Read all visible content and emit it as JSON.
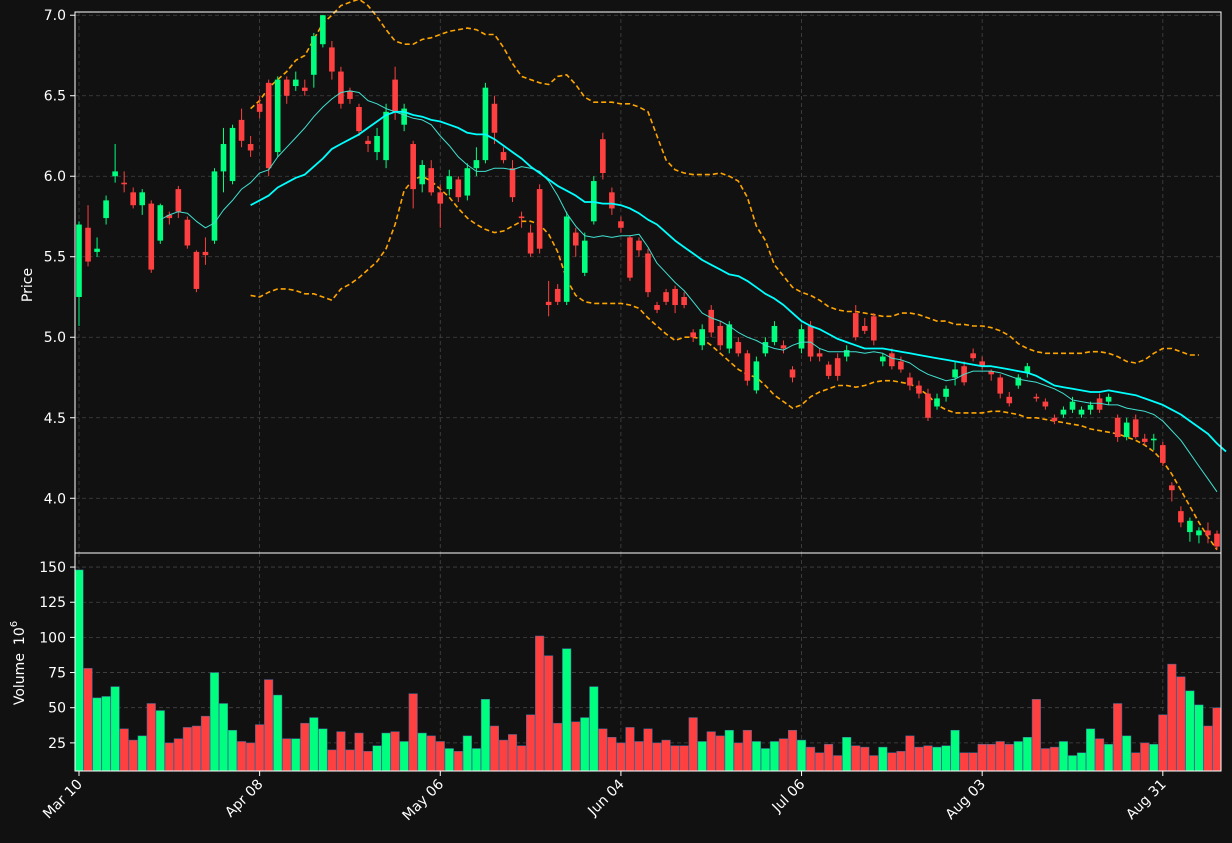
{
  "chart_data": {
    "type": "candlestick",
    "colors": {
      "background": "#111111",
      "up": "#00ff7f",
      "down": "#ff4040",
      "ma_fast": "#40e0d0",
      "ma_slow": "#00ffff",
      "band": "#ffa500",
      "grid": "#444444",
      "axes": "#ffffff"
    },
    "price_axis": {
      "label": "Price",
      "ylim": [
        3.66,
        7.02
      ],
      "ticks": [
        "4.0",
        "4.5",
        "5.0",
        "5.5",
        "6.0",
        "6.5",
        "7.0"
      ]
    },
    "volume_axis": {
      "label": "Volume",
      "unit": "10",
      "unit_exp": "6",
      "ylim": [
        5,
        160
      ],
      "ticks": [
        "25",
        "50",
        "75",
        "100",
        "125",
        "150"
      ]
    },
    "x_axis": {
      "ticks": [
        {
          "index": 0,
          "label": "Mar 10"
        },
        {
          "index": 20,
          "label": "Apr 08"
        },
        {
          "index": 40,
          "label": "May 06"
        },
        {
          "index": 60,
          "label": "Jun 04"
        },
        {
          "index": 80,
          "label": "Jul 06"
        },
        {
          "index": 100,
          "label": "Aug 03"
        },
        {
          "index": 120,
          "label": "Aug 31"
        }
      ]
    },
    "candles": [
      [
        5.25,
        5.7,
        5.72,
        5.07
      ],
      [
        5.68,
        5.47,
        5.82,
        5.44
      ],
      [
        5.53,
        5.55,
        5.62,
        5.5
      ],
      [
        5.74,
        5.85,
        5.88,
        5.7
      ],
      [
        6.0,
        6.03,
        6.2,
        5.96
      ],
      [
        5.96,
        5.95,
        6.03,
        5.9
      ],
      [
        5.9,
        5.82,
        5.93,
        5.8
      ],
      [
        5.82,
        5.9,
        5.92,
        5.76
      ],
      [
        5.83,
        5.42,
        5.85,
        5.4
      ],
      [
        5.6,
        5.82,
        5.83,
        5.58
      ],
      [
        5.76,
        5.74,
        5.78,
        5.7
      ],
      [
        5.92,
        5.78,
        5.94,
        5.74
      ],
      [
        5.73,
        5.57,
        5.75,
        5.55
      ],
      [
        5.53,
        5.3,
        5.54,
        5.28
      ],
      [
        5.53,
        5.51,
        5.62,
        5.45
      ],
      [
        5.6,
        6.03,
        6.05,
        5.58
      ],
      [
        6.03,
        6.2,
        6.3,
        5.9
      ],
      [
        5.97,
        6.3,
        6.32,
        5.95
      ],
      [
        6.35,
        6.22,
        6.42,
        6.18
      ],
      [
        6.2,
        6.16,
        6.25,
        6.12
      ],
      [
        6.45,
        6.4,
        6.5,
        6.36
      ],
      [
        6.58,
        6.05,
        6.6,
        6.0
      ],
      [
        6.15,
        6.6,
        6.62,
        6.12
      ],
      [
        6.6,
        6.5,
        6.62,
        6.45
      ],
      [
        6.56,
        6.6,
        6.65,
        6.53
      ],
      [
        6.55,
        6.53,
        6.6,
        6.5
      ],
      [
        6.63,
        6.87,
        6.89,
        6.55
      ],
      [
        6.82,
        7.0,
        7.0,
        6.8
      ],
      [
        6.8,
        6.65,
        6.84,
        6.6
      ],
      [
        6.65,
        6.45,
        6.68,
        6.42
      ],
      [
        6.53,
        6.48,
        6.55,
        6.45
      ],
      [
        6.43,
        6.28,
        6.45,
        6.25
      ],
      [
        6.22,
        6.2,
        6.25,
        6.15
      ],
      [
        6.15,
        6.25,
        6.3,
        6.1
      ],
      [
        6.1,
        6.4,
        6.45,
        6.05
      ],
      [
        6.6,
        6.4,
        6.68,
        6.35
      ],
      [
        6.32,
        6.42,
        6.45,
        6.28
      ],
      [
        6.2,
        5.92,
        6.22,
        5.8
      ],
      [
        5.95,
        6.07,
        6.1,
        5.9
      ],
      [
        6.05,
        5.9,
        6.1,
        5.88
      ],
      [
        5.9,
        5.83,
        5.95,
        5.68
      ],
      [
        5.92,
        6.0,
        6.04,
        5.88
      ],
      [
        5.98,
        5.87,
        6.0,
        5.84
      ],
      [
        5.88,
        6.05,
        6.08,
        5.85
      ],
      [
        6.05,
        6.1,
        6.18,
        6.0
      ],
      [
        6.1,
        6.55,
        6.58,
        6.08
      ],
      [
        6.45,
        6.27,
        6.5,
        6.2
      ],
      [
        6.15,
        6.1,
        6.18,
        6.08
      ],
      [
        6.05,
        5.87,
        6.1,
        5.84
      ],
      [
        5.75,
        5.74,
        5.78,
        5.68
      ],
      [
        5.65,
        5.52,
        5.7,
        5.5
      ],
      [
        5.92,
        5.55,
        5.95,
        5.52
      ],
      [
        5.22,
        5.2,
        5.35,
        5.13
      ],
      [
        5.3,
        5.22,
        5.33,
        5.2
      ],
      [
        5.22,
        5.75,
        5.78,
        5.2
      ],
      [
        5.65,
        5.57,
        5.68,
        5.5
      ],
      [
        5.4,
        5.6,
        5.65,
        5.38
      ],
      [
        5.72,
        5.97,
        6.0,
        5.7
      ],
      [
        6.23,
        6.02,
        6.27,
        5.98
      ],
      [
        5.9,
        5.8,
        5.93,
        5.76
      ],
      [
        5.72,
        5.68,
        5.75,
        5.65
      ],
      [
        5.62,
        5.37,
        5.63,
        5.35
      ],
      [
        5.6,
        5.54,
        5.62,
        5.5
      ],
      [
        5.52,
        5.28,
        5.55,
        5.25
      ],
      [
        5.2,
        5.17,
        5.22,
        5.15
      ],
      [
        5.28,
        5.22,
        5.3,
        5.2
      ],
      [
        5.3,
        5.2,
        5.32,
        5.15
      ],
      [
        5.25,
        5.2,
        5.28,
        5.18
      ],
      [
        5.03,
        5.0,
        5.05,
        4.97
      ],
      [
        4.95,
        5.05,
        5.08,
        4.92
      ],
      [
        5.17,
        5.03,
        5.2,
        5.0
      ],
      [
        5.07,
        4.95,
        5.1,
        4.92
      ],
      [
        4.93,
        5.08,
        5.1,
        4.9
      ],
      [
        4.97,
        4.9,
        5.0,
        4.88
      ],
      [
        4.9,
        4.73,
        4.92,
        4.7
      ],
      [
        4.67,
        4.85,
        4.88,
        4.65
      ],
      [
        4.9,
        4.97,
        5.0,
        4.88
      ],
      [
        4.97,
        5.07,
        5.1,
        4.95
      ],
      [
        4.95,
        4.93,
        4.98,
        4.9
      ],
      [
        4.8,
        4.75,
        4.82,
        4.72
      ],
      [
        4.93,
        5.05,
        5.08,
        4.9
      ],
      [
        5.07,
        4.88,
        5.1,
        4.85
      ],
      [
        4.9,
        4.88,
        4.93,
        4.85
      ],
      [
        4.83,
        4.76,
        4.85,
        4.74
      ],
      [
        4.87,
        4.76,
        4.9,
        4.73
      ],
      [
        4.88,
        4.92,
        4.95,
        4.85
      ],
      [
        5.15,
        5.0,
        5.2,
        4.98
      ],
      [
        5.07,
        5.04,
        5.12,
        5.02
      ],
      [
        5.13,
        4.98,
        5.15,
        4.95
      ],
      [
        4.85,
        4.88,
        4.9,
        4.82
      ],
      [
        4.9,
        4.82,
        4.93,
        4.8
      ],
      [
        4.85,
        4.8,
        4.88,
        4.78
      ],
      [
        4.75,
        4.7,
        4.78,
        4.67
      ],
      [
        4.7,
        4.65,
        4.73,
        4.62
      ],
      [
        4.65,
        4.5,
        4.68,
        4.48
      ],
      [
        4.57,
        4.62,
        4.65,
        4.55
      ],
      [
        4.63,
        4.68,
        4.7,
        4.6
      ],
      [
        4.75,
        4.8,
        4.85,
        4.7
      ],
      [
        4.82,
        4.72,
        4.85,
        4.7
      ],
      [
        4.9,
        4.87,
        4.93,
        4.85
      ],
      [
        4.85,
        4.82,
        4.88,
        4.8
      ],
      [
        4.79,
        4.77,
        4.8,
        4.73
      ],
      [
        4.75,
        4.65,
        4.77,
        4.62
      ],
      [
        4.63,
        4.59,
        4.66,
        4.57
      ],
      [
        4.7,
        4.75,
        4.77,
        4.68
      ],
      [
        4.78,
        4.82,
        4.84,
        4.75
      ],
      [
        4.63,
        4.62,
        4.65,
        4.6
      ],
      [
        4.6,
        4.57,
        4.62,
        4.55
      ],
      [
        4.5,
        4.48,
        4.52,
        4.46
      ],
      [
        4.52,
        4.55,
        4.57,
        4.5
      ],
      [
        4.55,
        4.6,
        4.63,
        4.53
      ],
      [
        4.52,
        4.55,
        4.57,
        4.5
      ],
      [
        4.55,
        4.58,
        4.6,
        4.52
      ],
      [
        4.62,
        4.55,
        4.65,
        4.53
      ],
      [
        4.6,
        4.63,
        4.65,
        4.58
      ],
      [
        4.5,
        4.38,
        4.52,
        4.35
      ],
      [
        4.38,
        4.47,
        4.5,
        4.36
      ],
      [
        4.49,
        4.38,
        4.52,
        4.37
      ],
      [
        4.37,
        4.35,
        4.4,
        4.33
      ],
      [
        4.36,
        4.37,
        4.4,
        4.3
      ],
      [
        4.33,
        4.22,
        4.35,
        4.2
      ],
      [
        4.08,
        4.05,
        4.1,
        3.98
      ],
      [
        3.92,
        3.85,
        3.95,
        3.82
      ],
      [
        3.79,
        3.86,
        3.88,
        3.73
      ],
      [
        3.77,
        3.8,
        3.82,
        3.72
      ],
      [
        3.8,
        3.77,
        3.85,
        3.72
      ],
      [
        3.78,
        3.7,
        3.8,
        3.68
      ]
    ],
    "volume": [
      148,
      78,
      57,
      58,
      65,
      35,
      27,
      30,
      53,
      48,
      25,
      28,
      36,
      37,
      44,
      75,
      53,
      34,
      26,
      25,
      38,
      70,
      59,
      28,
      28,
      39,
      43,
      35,
      20,
      33,
      20,
      32,
      19,
      23,
      32,
      33,
      26,
      60,
      32,
      30,
      26,
      21,
      19,
      30,
      21,
      56,
      37,
      27,
      31,
      23,
      45,
      101,
      87,
      39,
      92,
      40,
      43,
      65,
      35,
      29,
      25,
      36,
      26,
      35,
      25,
      27,
      23,
      23,
      43,
      26,
      33,
      30,
      34,
      25,
      34,
      26,
      21,
      26,
      28,
      34,
      27,
      22,
      18,
      24,
      16,
      29,
      23,
      22,
      16,
      22,
      18,
      19,
      30,
      22,
      23,
      22,
      23,
      34,
      18,
      18,
      24,
      24,
      26,
      24,
      26,
      29,
      56,
      21,
      22,
      26,
      16,
      18,
      35,
      28,
      24,
      53,
      30,
      18,
      25,
      24,
      45,
      81,
      72,
      62,
      52,
      37,
      50
    ],
    "ma_fast": {
      "start": 9,
      "values": [
        5.73,
        5.76,
        5.78,
        5.77,
        5.72,
        5.68,
        5.71,
        5.79,
        5.85,
        5.92,
        5.96,
        6.02,
        6.04,
        6.12,
        6.18,
        6.24,
        6.3,
        6.37,
        6.43,
        6.48,
        6.52,
        6.53,
        6.52,
        6.47,
        6.45,
        6.42,
        6.4,
        6.38,
        6.36,
        6.35,
        6.32,
        6.25,
        6.19,
        6.12,
        6.07,
        6.03,
        6.03,
        6.05,
        6.05,
        6.04,
        6.06,
        6.05,
        6.03,
        5.97,
        5.88,
        5.77,
        5.69,
        5.63,
        5.62,
        5.63,
        5.62,
        5.63,
        5.63,
        5.64,
        5.56,
        5.46,
        5.4,
        5.34,
        5.29,
        5.22,
        5.15,
        5.12,
        5.1,
        5.07,
        5.03,
        5.0,
        4.98,
        4.95,
        4.93,
        4.92,
        4.95,
        4.97,
        4.97,
        4.93,
        4.91,
        4.91,
        4.91,
        4.91,
        4.9,
        4.91,
        4.9,
        4.87,
        4.86,
        4.84,
        4.8,
        4.77,
        4.75,
        4.73,
        4.74,
        4.77,
        4.79,
        4.79,
        4.79,
        4.78,
        4.76,
        4.74,
        4.73,
        4.72,
        4.7,
        4.68,
        4.65,
        4.61,
        4.6,
        4.59,
        4.59,
        4.58,
        4.58,
        4.56,
        4.55,
        4.54,
        4.52,
        4.48,
        4.42,
        4.36,
        4.28,
        4.2,
        4.12,
        4.04
      ]
    },
    "ma_slow": {
      "start": 19,
      "values": [
        5.82,
        5.85,
        5.88,
        5.93,
        5.96,
        5.99,
        6.01,
        6.06,
        6.11,
        6.17,
        6.2,
        6.23,
        6.26,
        6.3,
        6.34,
        6.38,
        6.4,
        6.4,
        6.38,
        6.37,
        6.35,
        6.34,
        6.32,
        6.3,
        6.27,
        6.26,
        6.26,
        6.23,
        6.19,
        6.15,
        6.11,
        6.06,
        6.02,
        5.98,
        5.94,
        5.91,
        5.88,
        5.84,
        5.84,
        5.83,
        5.83,
        5.82,
        5.8,
        5.77,
        5.73,
        5.7,
        5.65,
        5.6,
        5.56,
        5.52,
        5.48,
        5.45,
        5.42,
        5.39,
        5.38,
        5.35,
        5.31,
        5.27,
        5.24,
        5.2,
        5.15,
        5.1,
        5.07,
        5.05,
        5.02,
        4.99,
        4.97,
        4.95,
        4.93,
        4.93,
        4.93,
        4.92,
        4.91,
        4.9,
        4.89,
        4.88,
        4.87,
        4.86,
        4.85,
        4.84,
        4.83,
        4.82,
        4.82,
        4.81,
        4.8,
        4.79,
        4.78,
        4.76,
        4.73,
        4.7,
        4.69,
        4.68,
        4.67,
        4.66,
        4.66,
        4.67,
        4.66,
        4.65,
        4.64,
        4.62,
        4.6,
        4.58,
        4.55,
        4.52,
        4.48,
        4.44,
        4.4,
        4.34,
        4.29
      ]
    },
    "band_upper": {
      "start": 19,
      "values": [
        6.42,
        6.47,
        6.55,
        6.6,
        6.65,
        6.72,
        6.75,
        6.85,
        6.95,
        7.0,
        7.06,
        7.08,
        7.1,
        7.06,
        6.99,
        6.91,
        6.84,
        6.82,
        6.82,
        6.85,
        6.86,
        6.88,
        6.9,
        6.91,
        6.92,
        6.91,
        6.88,
        6.88,
        6.8,
        6.7,
        6.62,
        6.6,
        6.58,
        6.57,
        6.62,
        6.63,
        6.57,
        6.49,
        6.46,
        6.46,
        6.46,
        6.45,
        6.45,
        6.43,
        6.4,
        6.25,
        6.1,
        6.04,
        6.02,
        6.01,
        6.01,
        6.01,
        6.02,
        6.0,
        5.97,
        5.87,
        5.69,
        5.6,
        5.45,
        5.38,
        5.31,
        5.28,
        5.26,
        5.23,
        5.19,
        5.17,
        5.16,
        5.16,
        5.15,
        5.14,
        5.13,
        5.13,
        5.15,
        5.15,
        5.14,
        5.12,
        5.1,
        5.1,
        5.08,
        5.08,
        5.07,
        5.07,
        5.06,
        5.04,
        5.01,
        4.96,
        4.93,
        4.91,
        4.9,
        4.9,
        4.9,
        4.9,
        4.9,
        4.91,
        4.91,
        4.9,
        4.88,
        4.85,
        4.84,
        4.86,
        4.9,
        4.93,
        4.93,
        4.91,
        4.89,
        4.89
      ]
    },
    "band_lower": {
      "start": 19,
      "values": [
        5.26,
        5.25,
        5.28,
        5.3,
        5.3,
        5.29,
        5.27,
        5.27,
        5.25,
        5.23,
        5.3,
        5.33,
        5.37,
        5.42,
        5.47,
        5.55,
        5.7,
        5.91,
        5.98,
        6.0,
        5.97,
        5.92,
        5.87,
        5.8,
        5.74,
        5.7,
        5.67,
        5.65,
        5.66,
        5.69,
        5.72,
        5.72,
        5.7,
        5.64,
        5.53,
        5.36,
        5.26,
        5.22,
        5.21,
        5.21,
        5.21,
        5.21,
        5.2,
        5.18,
        5.12,
        5.07,
        5.02,
        4.98,
        5.0,
        5.0,
        4.99,
        4.95,
        4.9,
        4.85,
        4.8,
        4.77,
        4.75,
        4.7,
        4.64,
        4.6,
        4.56,
        4.58,
        4.63,
        4.66,
        4.68,
        4.7,
        4.7,
        4.69,
        4.7,
        4.72,
        4.73,
        4.73,
        4.72,
        4.71,
        4.68,
        4.64,
        4.58,
        4.55,
        4.53,
        4.53,
        4.53,
        4.53,
        4.54,
        4.54,
        4.53,
        4.52,
        4.5,
        4.5,
        4.49,
        4.48,
        4.47,
        4.46,
        4.45,
        4.43,
        4.42,
        4.41,
        4.4,
        4.38,
        4.36,
        4.33,
        4.29,
        4.23,
        4.15,
        4.05,
        3.95,
        3.85,
        3.76,
        3.68
      ]
    }
  }
}
